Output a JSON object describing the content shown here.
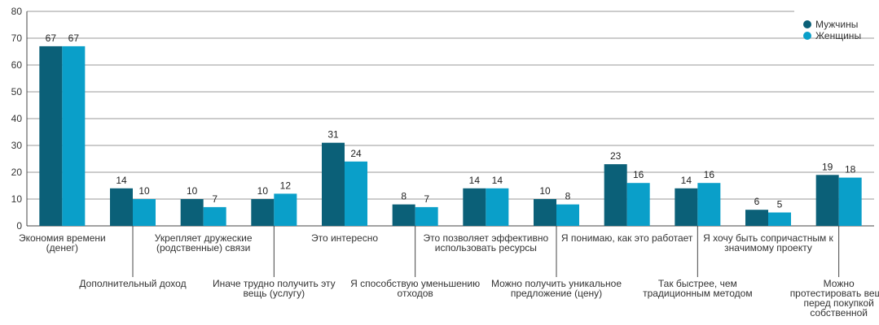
{
  "chart_data": {
    "type": "bar",
    "title": "",
    "xlabel": "",
    "ylabel": "",
    "ylim": [
      0,
      80
    ],
    "yticks": [
      0,
      10,
      20,
      30,
      40,
      50,
      60,
      70,
      80
    ],
    "grid": "horizontal",
    "legend_position": "top-right",
    "categories": [
      [
        "Экономия времени",
        "(денег)"
      ],
      [
        "Дополнительный доход"
      ],
      [
        "Укрепляет дружеские",
        "(родственные) связи"
      ],
      [
        "Иначе трудно получить эту",
        "вещь (услугу)"
      ],
      [
        "Это интересно"
      ],
      [
        "Я способствую уменьшению",
        "отходов"
      ],
      [
        "Это позволяет эффективно",
        "использовать ресурсы"
      ],
      [
        "Можно получить уникальное",
        "предложение (цену)"
      ],
      [
        "Я понимаю, как это работает"
      ],
      [
        "Так быстрее, чем",
        "традиционным методом"
      ],
      [
        "Я хочу быть сопричастным к",
        "значимому проекту"
      ],
      [
        "Можно",
        "протестировать вещь",
        "перед покупкой",
        "собственной"
      ]
    ],
    "series": [
      {
        "name": "Мужчины",
        "color": "#0b6078",
        "values": [
          67,
          14,
          10,
          10,
          31,
          8,
          14,
          10,
          23,
          14,
          6,
          19
        ]
      },
      {
        "name": "Женщины",
        "color": "#0a9fc9",
        "values": [
          67,
          10,
          7,
          12,
          24,
          7,
          14,
          8,
          16,
          16,
          5,
          18
        ]
      }
    ]
  }
}
